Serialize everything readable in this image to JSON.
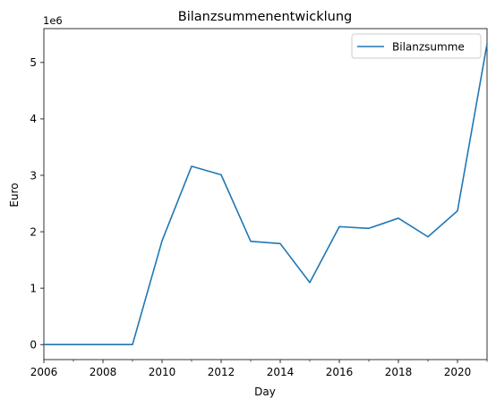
{
  "chart_data": {
    "type": "line",
    "title": "Bilanzsummenentwicklung",
    "xlabel": "Day",
    "ylabel": "Euro",
    "y_offset_label": "1e6",
    "xlim": [
      2006,
      2021
    ],
    "ylim": [
      -0.266,
      5.6
    ],
    "x_ticks": [
      2006,
      2008,
      2010,
      2012,
      2014,
      2016,
      2018,
      2020
    ],
    "x_tick_labels": [
      "2006",
      "2008",
      "2010",
      "2012",
      "2014",
      "2016",
      "2018",
      "2020"
    ],
    "y_ticks": [
      0,
      1,
      2,
      3,
      4,
      5
    ],
    "y_tick_labels": [
      "0",
      "1",
      "2",
      "3",
      "4",
      "5"
    ],
    "grid": false,
    "legend_position": "top-right",
    "series": [
      {
        "name": "Bilanzsumme",
        "color": "#1f77b4",
        "x": [
          2006,
          2007,
          2008,
          2009,
          2010,
          2011,
          2012,
          2013,
          2014,
          2015,
          2016,
          2017,
          2018,
          2019,
          2020,
          2021
        ],
        "y": [
          0,
          0,
          0,
          0,
          1.84,
          3.16,
          3.01,
          1.83,
          1.79,
          1.1,
          2.09,
          2.06,
          2.24,
          1.91,
          2.37,
          5.33
        ]
      }
    ]
  }
}
